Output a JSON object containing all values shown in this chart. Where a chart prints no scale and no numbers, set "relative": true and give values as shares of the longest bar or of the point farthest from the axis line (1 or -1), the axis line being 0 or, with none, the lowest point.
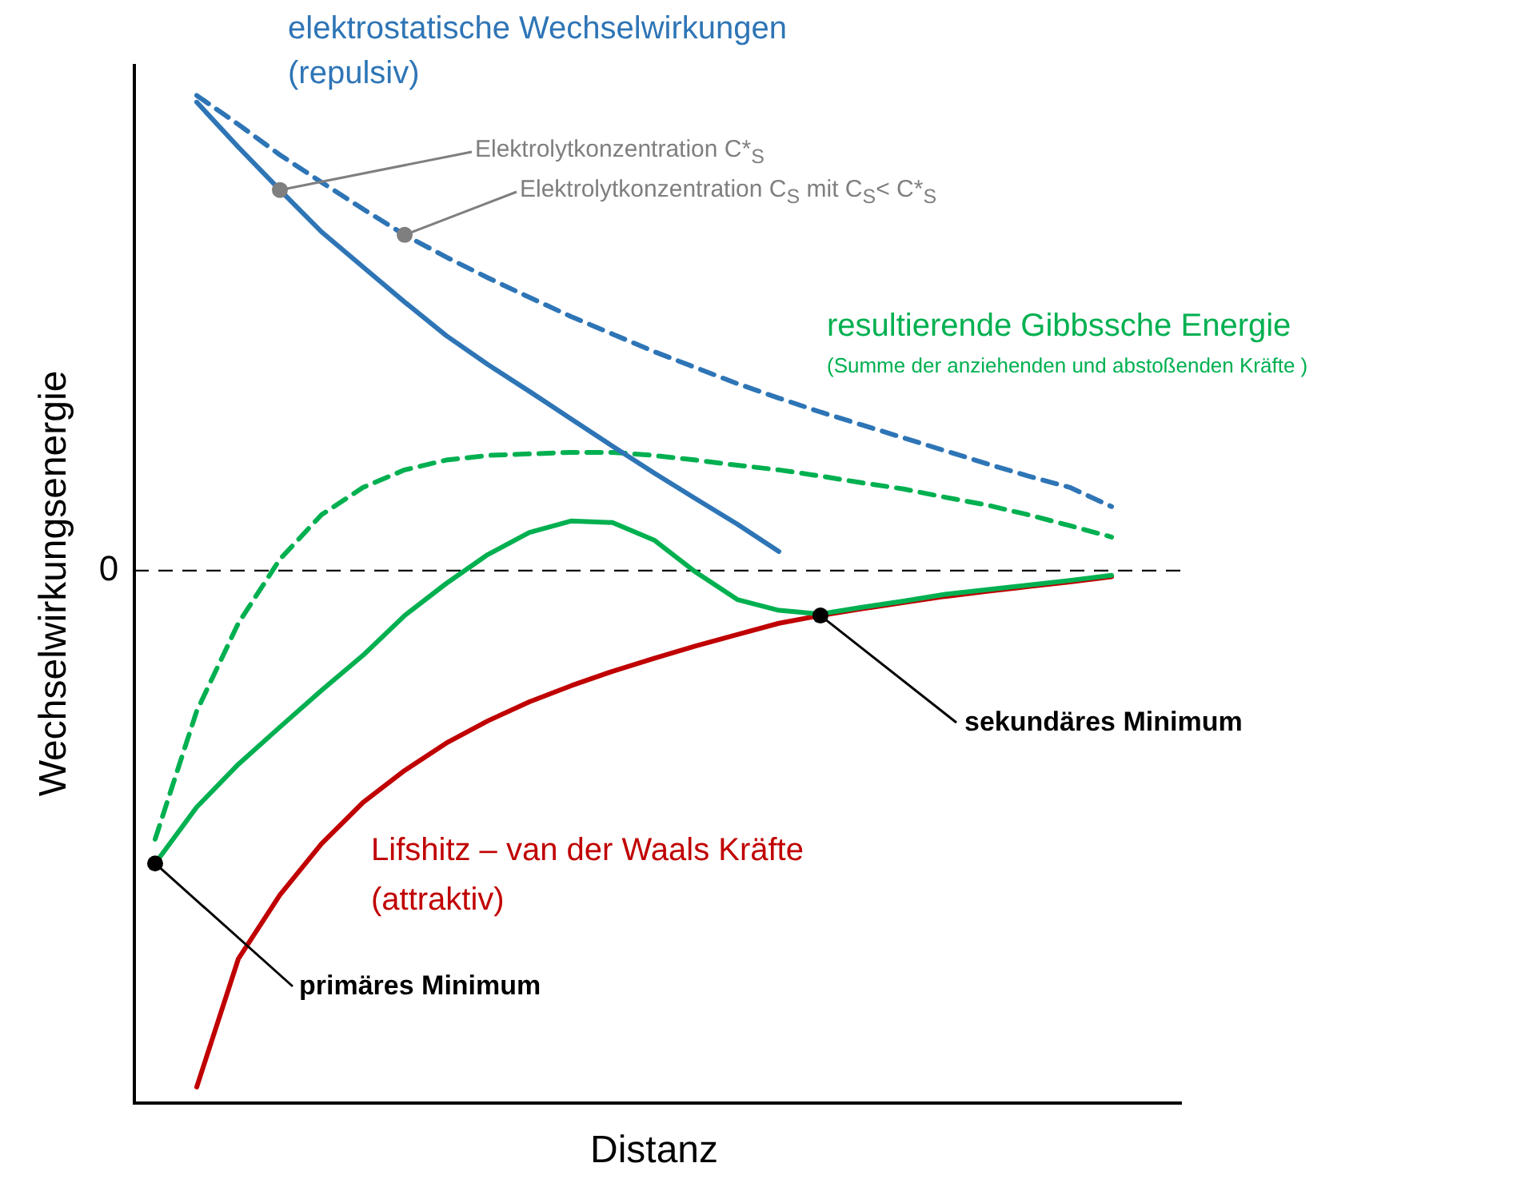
{
  "chart_data": {
    "type": "line",
    "relative": true,
    "xlabel": "Distanz",
    "ylabel": "Wechselwirkungsenergie",
    "marker": "none",
    "legend": false,
    "categories": [
      null,
      null,
      null,
      null,
      null,
      null,
      null,
      null,
      null,
      null,
      null,
      null,
      null,
      null,
      null,
      null,
      null,
      null,
      null,
      null,
      null,
      null,
      null,
      null,
      null
    ],
    "series": [
      {
        "color": "#2e75b6",
        "line_style": "solid",
        "values": [
          null,
          0.907,
          0.82,
          0.737,
          0.656,
          0.588,
          0.52,
          0.455,
          0.399,
          0.347,
          0.294,
          0.241,
          0.189,
          0.139,
          0.09,
          0.037,
          null,
          null,
          null,
          null,
          null,
          null,
          null,
          null,
          null
        ]
      },
      {
        "color": "#2e75b6",
        "line_style": "dashed",
        "values": [
          null,
          0.92,
          0.864,
          0.805,
          0.752,
          0.7,
          0.65,
          0.607,
          0.567,
          0.529,
          0.492,
          0.458,
          0.424,
          0.393,
          0.362,
          0.334,
          0.307,
          0.282,
          0.257,
          0.232,
          0.207,
          0.183,
          0.161,
          0.124,
          null
        ]
      },
      {
        "color": "#00b050",
        "line_style": "solid",
        "values": [
          -0.567,
          -0.458,
          -0.375,
          -0.303,
          -0.232,
          -0.164,
          -0.087,
          -0.025,
          0.031,
          0.074,
          0.096,
          0.093,
          0.059,
          -0.003,
          -0.056,
          -0.077,
          -0.084,
          -0.071,
          -0.059,
          -0.046,
          -0.037,
          -0.028,
          -0.019,
          -0.009,
          null
        ]
      },
      {
        "color": "#00b050",
        "line_style": "dashed",
        "values": [
          -0.52,
          -0.272,
          -0.102,
          0.022,
          0.108,
          0.161,
          0.195,
          0.214,
          0.223,
          0.226,
          0.229,
          0.229,
          0.223,
          0.214,
          0.204,
          0.195,
          0.183,
          0.17,
          0.158,
          0.142,
          0.127,
          0.108,
          0.087,
          0.065,
          null
        ]
      },
      {
        "color": "#c00000",
        "line_style": "solid",
        "values": [
          null,
          -1.0,
          -0.752,
          -0.628,
          -0.529,
          -0.449,
          -0.387,
          -0.334,
          -0.291,
          -0.254,
          -0.223,
          -0.195,
          -0.17,
          -0.146,
          -0.124,
          -0.102,
          -0.087,
          -0.074,
          -0.062,
          -0.05,
          -0.04,
          -0.031,
          -0.022,
          -0.012,
          null
        ]
      }
    ],
    "ref_lines": [
      {
        "axis": "y",
        "value": 0,
        "label": "0",
        "color": "#000000",
        "line_style": "dashed"
      }
    ],
    "annotations": [
      "elektrostatische Wechselwirkungen",
      "(repulsiv)",
      "Elektrolytkonzentration C*$_{S}$",
      "Elektrolytkonzentration C$_{S}$ mit C$_{S}$< C*$_{S}$",
      "resultierende Gibbssche Energie",
      "(Summe der anziehenden und abstoßenden Kräfte )",
      "sekundäres Minimum",
      "Lifshitz – van der Waals Kräfte",
      "(attraktiv)",
      "primäres Minimum"
    ]
  }
}
